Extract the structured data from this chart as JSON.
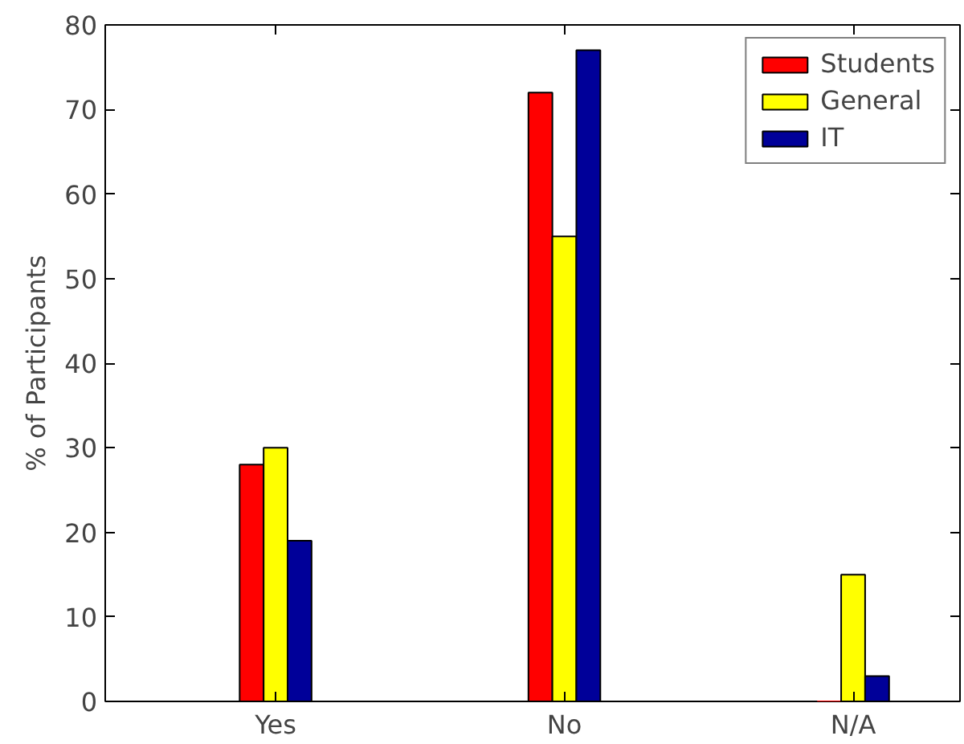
{
  "chart_data": {
    "type": "bar",
    "ylabel": "% of Participants",
    "categories": [
      "Yes",
      "No",
      "N/A"
    ],
    "series": [
      {
        "name": "Students",
        "color": "#ff0000",
        "values": [
          28,
          72,
          0
        ]
      },
      {
        "name": "General",
        "color": "#ffff00",
        "values": [
          30,
          55,
          15
        ]
      },
      {
        "name": "IT",
        "color": "#000099",
        "values": [
          19,
          77,
          3
        ]
      }
    ],
    "ylim": [
      0,
      80
    ],
    "yticks": [
      0,
      10,
      20,
      30,
      40,
      50,
      60,
      70,
      80
    ],
    "grid": false,
    "legend": "top right"
  }
}
